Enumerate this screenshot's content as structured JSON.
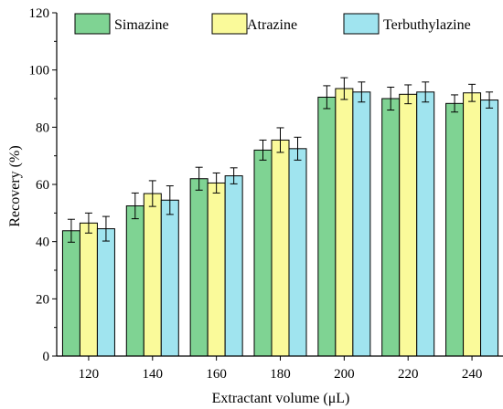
{
  "chart_data": {
    "type": "bar",
    "title": "",
    "xlabel": "Extractant volume (μL)",
    "ylabel": "Recovery (%)",
    "ylim": [
      0,
      120
    ],
    "yticks": [
      0,
      20,
      40,
      60,
      80,
      100,
      120
    ],
    "categories": [
      "120",
      "140",
      "160",
      "180",
      "200",
      "220",
      "240"
    ],
    "grid": false,
    "legend_position": "top",
    "error_bars": true,
    "series": [
      {
        "name": "Simazine",
        "color": "#7fd393",
        "values": [
          43.8,
          52.5,
          62.0,
          72.0,
          90.5,
          90.0,
          88.3
        ],
        "errors": [
          4.0,
          4.5,
          4.0,
          3.5,
          4.0,
          4.0,
          3.0
        ]
      },
      {
        "name": "Atrazine",
        "color": "#fafa9a",
        "values": [
          46.5,
          56.8,
          60.5,
          75.5,
          93.5,
          91.5,
          92.0
        ],
        "errors": [
          3.5,
          4.5,
          3.5,
          4.3,
          3.8,
          3.3,
          3.0
        ]
      },
      {
        "name": "Terbuthylazine",
        "color": "#a0e4ef",
        "values": [
          44.5,
          54.5,
          63.0,
          72.5,
          92.3,
          92.3,
          89.5
        ],
        "errors": [
          4.3,
          5.0,
          2.8,
          4.0,
          3.5,
          3.5,
          2.8
        ]
      }
    ]
  }
}
